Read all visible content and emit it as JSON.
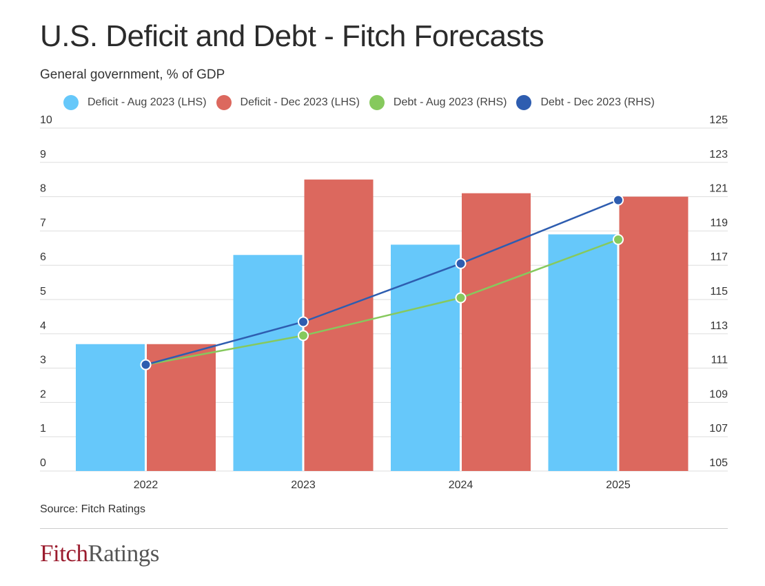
{
  "title": "U.S. Deficit and Debt - Fitch Forecasts",
  "subtitle": "General government, % of GDP",
  "source": "Source: Fitch Ratings",
  "brand": {
    "part1": "Fitch",
    "part2": "Ratings"
  },
  "colors": {
    "deficit_aug": "#66c8fa",
    "deficit_dec": "#dc685e",
    "debt_aug": "#86c95d",
    "debt_dec": "#2e5db0",
    "grid": "#dddddd",
    "axis_text": "#333333"
  },
  "legend": [
    {
      "label": "Deficit - Aug 2023 (LHS)",
      "color": "#66c8fa"
    },
    {
      "label": "Deficit - Dec 2023 (LHS)",
      "color": "#dc685e"
    },
    {
      "label": "Debt - Aug 2023 (RHS)",
      "color": "#86c95d"
    },
    {
      "label": "Debt - Dec 2023 (RHS)",
      "color": "#2e5db0"
    }
  ],
  "chart_data": {
    "type": "bar",
    "title": "U.S. Deficit and Debt - Fitch Forecasts",
    "subtitle": "General government, % of GDP",
    "categories": [
      "2022",
      "2023",
      "2024",
      "2025"
    ],
    "left_axis": {
      "range": [
        0,
        10
      ],
      "ticks": [
        "0",
        "1",
        "2",
        "3",
        "4",
        "5",
        "6",
        "7",
        "8",
        "9",
        "10"
      ]
    },
    "right_axis": {
      "range": [
        105,
        125
      ],
      "ticks": [
        "105",
        "107",
        "109",
        "111",
        "113",
        "115",
        "117",
        "119",
        "121",
        "123",
        "125"
      ]
    },
    "grid": true,
    "legend_position": "top",
    "series": [
      {
        "name": "Deficit - Aug 2023 (LHS)",
        "type": "bar",
        "axis": "left",
        "color": "#66c8fa",
        "values": [
          3.7,
          6.3,
          6.6,
          6.9
        ]
      },
      {
        "name": "Deficit - Dec 2023 (LHS)",
        "type": "bar",
        "axis": "left",
        "color": "#dc685e",
        "values": [
          3.7,
          8.5,
          8.1,
          8.0
        ]
      },
      {
        "name": "Debt - Aug 2023 (RHS)",
        "type": "line",
        "axis": "right",
        "color": "#86c95d",
        "values": [
          111.2,
          112.9,
          115.1,
          118.5
        ]
      },
      {
        "name": "Debt - Dec 2023 (RHS)",
        "type": "line",
        "axis": "right",
        "color": "#2e5db0",
        "values": [
          111.2,
          113.7,
          117.1,
          120.8
        ]
      }
    ]
  }
}
